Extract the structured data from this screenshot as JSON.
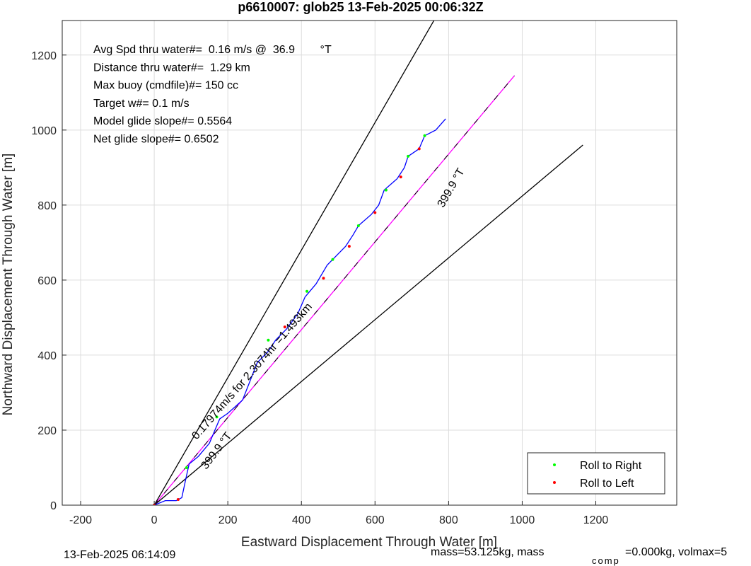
{
  "chart_data": {
    "type": "line",
    "title": "p6610007: glob25 13-Feb-2025 00:06:32Z",
    "xlabel": "Eastward Displacement Through Water [m]",
    "ylabel": "Northward Displacement Through Water [m]",
    "xlim": [
      -250,
      1420
    ],
    "ylim": [
      0,
      1292
    ],
    "xticks": [
      -200,
      0,
      200,
      400,
      600,
      800,
      1000,
      1200
    ],
    "yticks": [
      0,
      200,
      400,
      600,
      800,
      1000,
      1200
    ],
    "grid": true,
    "legend": "lower right",
    "annotations": [
      "Avg Spd thru water#=  0.16 m/s @  36.9        °T",
      "Distance thru water#=  1.29 km",
      "Max buoy (cmdfile)#= 150 cc",
      "Target w#= 0.1 m/s",
      "Model glide slope#= 0.5564",
      "Net glide slope#= 0.6502"
    ],
    "line_labels": [
      "399.9 °T",
      "0.17974m/s for 2.3074hr =1.493km",
      "399.9 °T"
    ],
    "footer": [
      "13-Feb-2025 06:14:09",
      "mass=53.125kg, mass",
      "comp",
      "=0.000kg, volmax=5"
    ],
    "series": [
      {
        "style": "line",
        "color": "#000000",
        "x": [
          0,
          760
        ],
        "values": [
          0,
          1292
        ]
      },
      {
        "style": "line",
        "color": "#000000",
        "x": [
          0,
          1165
        ],
        "values": [
          0,
          960
        ]
      },
      {
        "style": "line",
        "color": "#ff00ff",
        "x": [
          0,
          979
        ],
        "values": [
          0,
          1145
        ]
      },
      {
        "style": "dashed",
        "color": "#000000",
        "x": [
          0,
          979
        ],
        "values": [
          0,
          1145
        ]
      },
      {
        "style": "line",
        "color": "#0000ff",
        "x": [
          0,
          30,
          60,
          75,
          88,
          95,
          120,
          150,
          165,
          178,
          200,
          240,
          260,
          280,
          310,
          330,
          360,
          390,
          410,
          440,
          470,
          490,
          520,
          540,
          555,
          590,
          610,
          625,
          660,
          680,
          690,
          720,
          735,
          765,
          792
        ],
        "values": [
          0,
          12,
          12,
          20,
          80,
          110,
          130,
          165,
          200,
          230,
          245,
          280,
          330,
          380,
          410,
          440,
          470,
          510,
          555,
          590,
          640,
          660,
          690,
          720,
          745,
          775,
          800,
          840,
          870,
          900,
          930,
          950,
          985,
          1000,
          1030
        ]
      },
      {
        "style": "dots",
        "name": "Roll to Right",
        "color": "#00ff00",
        "x": [
          88,
          170,
          310,
          415,
          485,
          555,
          630,
          690,
          735
        ],
        "values": [
          100,
          235,
          440,
          570,
          655,
          745,
          840,
          930,
          985
        ]
      },
      {
        "style": "dots",
        "name": "Roll to Left",
        "color": "#ff0000",
        "x": [
          0,
          65,
          355,
          460,
          530,
          600,
          670,
          720
        ],
        "values": [
          0,
          15,
          475,
          605,
          690,
          780,
          875,
          950
        ]
      }
    ]
  }
}
